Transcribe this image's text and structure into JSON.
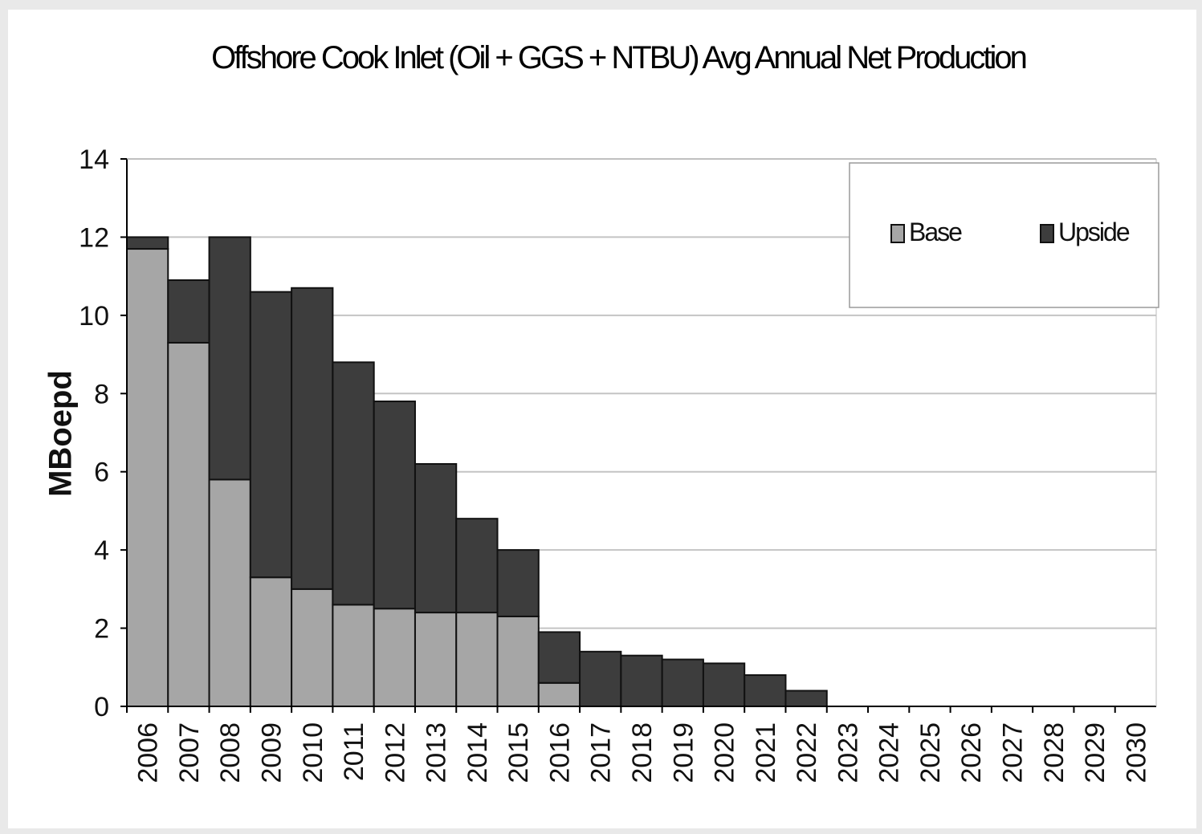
{
  "chart_data": {
    "type": "bar",
    "stacked": true,
    "title": "Offshore Cook Inlet (Oil + GGS + NTBU) Avg Annual Net Production",
    "xlabel": "",
    "ylabel": "MBoepd",
    "ylim": [
      0,
      14
    ],
    "yticks": [
      "0",
      "2",
      "4",
      "6",
      "8",
      "10",
      "12",
      "14"
    ],
    "grid": true,
    "legend_position": "top-right",
    "categories": [
      "2006",
      "2007",
      "2008",
      "2009",
      "2010",
      "2011",
      "2012",
      "2013",
      "2014",
      "2015",
      "2016",
      "2017",
      "2018",
      "2019",
      "2020",
      "2021",
      "2022",
      "2023",
      "2024",
      "2025",
      "2026",
      "2027",
      "2028",
      "2029",
      "2030"
    ],
    "series": [
      {
        "name": "Base",
        "color": "#a6a6a6",
        "values": [
          11.7,
          9.3,
          5.8,
          3.3,
          3.0,
          2.6,
          2.5,
          2.4,
          2.4,
          2.3,
          0.6,
          0,
          0,
          0,
          0,
          0,
          0,
          0,
          0,
          0,
          0,
          0,
          0,
          0,
          0
        ]
      },
      {
        "name": "Upside",
        "color": "#3d3d3d",
        "values": [
          0.3,
          1.6,
          6.2,
          7.3,
          7.7,
          6.2,
          5.3,
          3.8,
          2.4,
          1.7,
          1.3,
          1.4,
          1.3,
          1.2,
          1.1,
          0.8,
          0.4,
          0,
          0,
          0,
          0,
          0,
          0,
          0,
          0
        ]
      }
    ]
  }
}
